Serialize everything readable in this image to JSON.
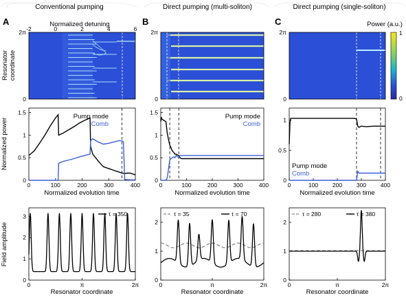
{
  "headers": [
    "Conventional pumping",
    "Direct pumping (multi-soliton)",
    "Direct pumping (single-soliton)"
  ],
  "panel_letters": [
    "A",
    "B",
    "C"
  ],
  "labels": {
    "normalized_detuning": "Normalized detuning",
    "resonator_coordinate_line1": "Resonator",
    "resonator_coordinate_line2": "coordinate",
    "normalized_power": "Normalized power",
    "field_amplitude": "Field amplitude",
    "normalized_evolution_time": "Normalized evolution time",
    "resonator_coordinate": "Resonator coordinate",
    "power_au": "Power (a.u.)"
  },
  "legend": {
    "pump_mode": "Pump mode",
    "comb": "Comb"
  },
  "tick_labels": {
    "detuning": [
      "-2",
      "0",
      "2",
      "4",
      "6"
    ],
    "twopi": "2π",
    "zero": "0",
    "pi": "π",
    "time": [
      "0",
      "100",
      "200",
      "300",
      "400"
    ],
    "power_y": [
      "0",
      "0.5",
      "1",
      "1.5"
    ],
    "field_y_A": [
      "0",
      "1",
      "2",
      "3"
    ],
    "field_y_BC": [
      "0",
      "1",
      "2"
    ],
    "colorbar": [
      "1",
      "0"
    ]
  },
  "tau_labels": {
    "A": [
      "τ = 350"
    ],
    "B": [
      "τ = 35",
      "τ = 70"
    ],
    "C": [
      "τ = 280",
      "τ = 380"
    ]
  },
  "colors": {
    "pump": "#000000",
    "comb": "#3a5fd9",
    "heatmap_bg": "#2b4fd6",
    "dashed_profile": "#8c8c8c"
  },
  "chart_data": [
    {
      "panel": "A-top",
      "type": "heatmap",
      "xlabel": "Normalized detuning",
      "ylabel": "Resonator coordinate",
      "xlim": [
        -2,
        6
      ],
      "ylim_label": [
        "0",
        "2π"
      ],
      "dashed_marker_x": 5.1,
      "description_values": {
        "band_start_detuning": 0.8,
        "tracks_end_detuning": 2.8,
        "final_soliton_count": 1
      }
    },
    {
      "panel": "A-middle",
      "type": "line",
      "xlabel": "Normalized evolution time",
      "ylabel": "Normalized power",
      "xlim": [
        0,
        400
      ],
      "ylim": [
        0,
        1.6
      ],
      "dashed_marker_x": 350,
      "series": [
        {
          "name": "Pump mode",
          "x": [
            0,
            20,
            40,
            60,
            80,
            100,
            110,
            112,
            130,
            150,
            170,
            190,
            210,
            230,
            232,
            240,
            260,
            280,
            300,
            320,
            340,
            350,
            360,
            370,
            380,
            400
          ],
          "y": [
            0.55,
            0.65,
            0.82,
            1.0,
            1.2,
            1.38,
            1.45,
            1.0,
            1.05,
            1.12,
            1.19,
            1.27,
            1.33,
            1.38,
            0.75,
            0.58,
            0.43,
            0.3,
            0.26,
            0.22,
            0.18,
            0.16,
            0.15,
            0.16,
            0.16,
            0.12
          ]
        },
        {
          "name": "Comb",
          "x": [
            0,
            100,
            110,
            112,
            130,
            150,
            170,
            190,
            210,
            230,
            232,
            240,
            260,
            280,
            300,
            320,
            340,
            350,
            355,
            360,
            380,
            400
          ],
          "y": [
            0.0,
            0.0,
            0.0,
            0.38,
            0.42,
            0.45,
            0.48,
            0.52,
            0.55,
            0.58,
            0.88,
            0.92,
            0.85,
            0.8,
            0.82,
            0.85,
            0.88,
            0.87,
            0.86,
            0.02,
            0.01,
            0.01
          ]
        }
      ]
    },
    {
      "panel": "A-bottom",
      "type": "line",
      "xlabel": "Resonator coordinate",
      "ylabel": "Field amplitude",
      "ylim": [
        0,
        3.4
      ],
      "pulse_count": 9,
      "pulse_peak": 3.15,
      "baseline": 0.4,
      "legend": [
        "τ = 350"
      ]
    },
    {
      "panel": "B-top",
      "type": "heatmap",
      "xlabel": "",
      "ylabel": "",
      "xlim": [
        0,
        400
      ],
      "dashed_marker_x": [
        35,
        70
      ],
      "final_soliton_count": 6
    },
    {
      "panel": "B-middle",
      "type": "line",
      "xlabel": "Normalized evolution time",
      "ylabel": "",
      "xlim": [
        0,
        400
      ],
      "ylim": [
        0,
        1.6
      ],
      "dashed_marker_x": [
        35,
        70
      ],
      "series": [
        {
          "name": "Pump mode",
          "x": [
            0,
            2,
            5,
            20,
            25,
            30,
            35,
            40,
            45,
            50,
            55,
            60,
            65,
            70,
            75,
            80,
            100,
            200,
            300,
            400
          ],
          "y": [
            1.3,
            1.4,
            1.35,
            1.3,
            1.05,
            0.9,
            0.78,
            0.72,
            0.65,
            0.62,
            0.58,
            0.58,
            0.56,
            0.55,
            0.5,
            0.48,
            0.48,
            0.48,
            0.48,
            0.48
          ]
        },
        {
          "name": "Comb",
          "x": [
            0,
            20,
            25,
            30,
            35,
            40,
            45,
            50,
            55,
            60,
            65,
            70,
            75,
            80,
            100,
            200,
            300,
            400
          ],
          "y": [
            0.0,
            0.0,
            0.05,
            0.25,
            0.45,
            0.48,
            0.5,
            0.52,
            0.5,
            0.55,
            0.52,
            0.5,
            0.55,
            0.55,
            0.55,
            0.55,
            0.55,
            0.55
          ]
        }
      ]
    },
    {
      "panel": "B-bottom",
      "type": "line",
      "xlabel": "Resonator coordinate",
      "ylabel": "",
      "ylim": [
        0,
        2.5
      ],
      "legend": [
        "τ = 35",
        "τ = 70"
      ],
      "dashed_profile": {
        "baseline": 1.2,
        "modulation": 0.08
      },
      "solid_profile": {
        "baseline": 0.6,
        "pulse_count": 6,
        "pulse_peak": 2.1
      }
    },
    {
      "panel": "C-top",
      "type": "heatmap",
      "xlabel": "",
      "ylabel": "",
      "xlim": [
        0,
        400
      ],
      "dashed_marker_x": [
        280,
        380
      ],
      "final_soliton_count": 1,
      "colorbar": {
        "label": "Power (a.u.)",
        "ticks": [
          "1",
          "0"
        ]
      }
    },
    {
      "panel": "C-middle",
      "type": "line",
      "xlabel": "Normalized evolution time",
      "ylabel": "",
      "xlim": [
        0,
        400
      ],
      "ylim": [
        0,
        1.2
      ],
      "dashed_marker_x": [
        280,
        380
      ],
      "series": [
        {
          "name": "Pump mode",
          "x": [
            0,
            3,
            6,
            10,
            50,
            100,
            200,
            270,
            280,
            285,
            290,
            300,
            320,
            350,
            400
          ],
          "y": [
            0.6,
            0.95,
            1.03,
            1.03,
            1.03,
            1.03,
            1.03,
            1.03,
            1.02,
            0.9,
            0.88,
            0.9,
            0.89,
            0.9,
            0.9
          ]
        },
        {
          "name": "Comb",
          "x": [
            0,
            270,
            280,
            285,
            290,
            300,
            350,
            400
          ],
          "y": [
            0.0,
            0.0,
            0.0,
            0.15,
            0.12,
            0.12,
            0.12,
            0.12
          ]
        }
      ]
    },
    {
      "panel": "C-bottom",
      "type": "line",
      "xlabel": "Resonator coordinate",
      "ylabel": "",
      "ylim": [
        0,
        2.5
      ],
      "legend": [
        "τ = 280",
        "τ = 380"
      ],
      "dashed_profile": {
        "baseline": 1.02
      },
      "solid_profile": {
        "baseline": 1.0,
        "peak_position": "1.5π",
        "pulse_peak": 2.42
      }
    }
  ]
}
